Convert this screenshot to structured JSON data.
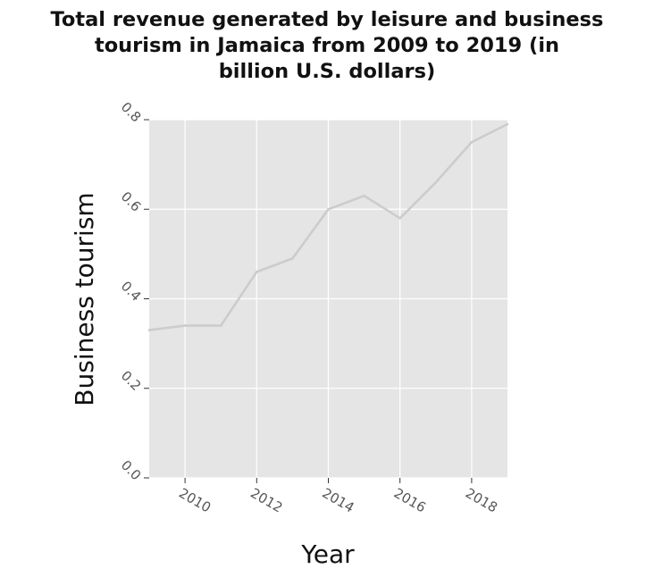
{
  "chart_data": {
    "type": "line",
    "title": "Total revenue generated by leisure and business\ntourism in Jamaica from 2009 to 2019 (in\nbillion U.S. dollars)",
    "xlabel": "Year",
    "ylabel": "Business tourism",
    "xlim": [
      2009,
      2019
    ],
    "ylim": [
      0,
      0.8
    ],
    "x_ticks": [
      "2010",
      "2012",
      "2014",
      "2016",
      "2018"
    ],
    "y_ticks": [
      "0.0",
      "0.2",
      "0.4",
      "0.6",
      "0.8"
    ],
    "grid": true,
    "colors": {
      "panel": "#e5e5e5",
      "grid": "#ffffff",
      "line": "#cccccc",
      "tick": "#555555",
      "text": "#111111"
    },
    "series": [
      {
        "x": [
          2009,
          2010,
          2011,
          2012,
          2013,
          2014,
          2015,
          2016,
          2017,
          2018,
          2019
        ],
        "values": [
          0.33,
          0.34,
          0.34,
          0.46,
          0.49,
          0.6,
          0.63,
          0.58,
          0.66,
          0.75,
          0.79
        ]
      }
    ]
  }
}
